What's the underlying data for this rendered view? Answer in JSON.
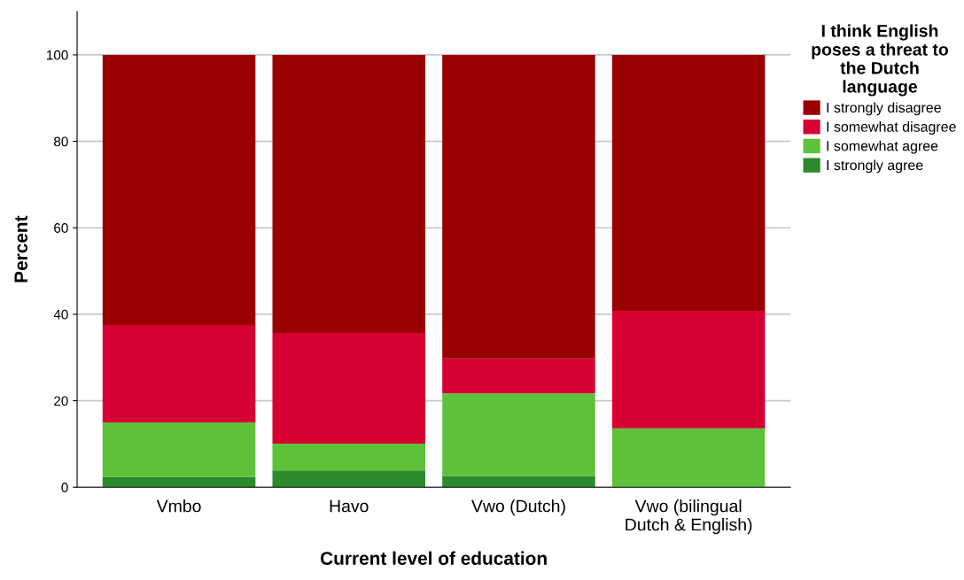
{
  "chart_data": {
    "type": "bar",
    "stacked": true,
    "xlabel": "Current level of education",
    "ylabel": "Percent",
    "legend_title": "I think English\nposes a threat to\nthe Dutch\nlanguage",
    "categories": [
      "Vmbo",
      "Havo",
      "Vwo (Dutch)",
      "Vwo (bilingual\nDutch & English)"
    ],
    "series": [
      {
        "name": "I strongly agree",
        "color": "#2b8a2b",
        "values": [
          2.4,
          3.9,
          2.6,
          0
        ]
      },
      {
        "name": "I somewhat agree",
        "color": "#5dc23a",
        "values": [
          12.6,
          6.2,
          19.1,
          13.6
        ]
      },
      {
        "name": "I somewhat disagree",
        "color": "#d70033",
        "values": [
          22.5,
          25.6,
          8.1,
          27.2
        ]
      },
      {
        "name": "I strongly disagree",
        "color": "#990000",
        "values": [
          62.5,
          64.3,
          70.2,
          59.2
        ]
      }
    ],
    "ylim": [
      0,
      110
    ],
    "yticks": [
      0,
      20,
      40,
      60,
      80,
      100
    ],
    "grid": "y",
    "legend": "top right"
  }
}
